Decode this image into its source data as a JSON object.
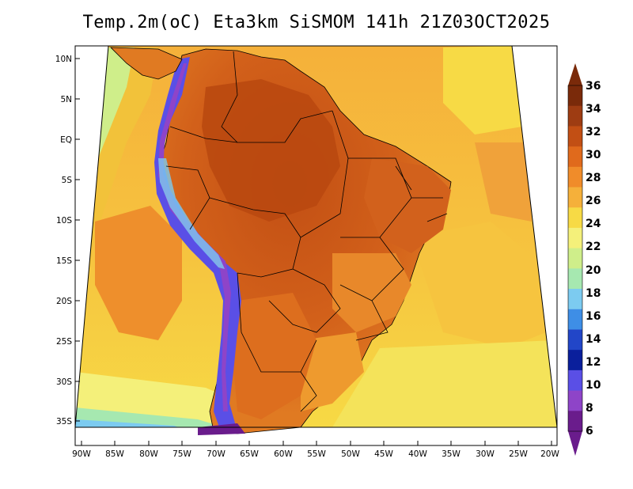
{
  "title": "Temp.2m(oC) Eta3km SiSMOM 141h 21Z03OCT2025",
  "map": {
    "lat_ticks": [
      "10N",
      "5N",
      "EQ",
      "5S",
      "10S",
      "15S",
      "20S",
      "25S",
      "30S",
      "35S"
    ],
    "lon_ticks": [
      "90W",
      "85W",
      "80W",
      "75W",
      "70W",
      "65W",
      "60W",
      "55W",
      "50W",
      "45W",
      "40W",
      "35W",
      "30W",
      "25W",
      "20W"
    ],
    "lon_range": [
      -91,
      -20
    ],
    "lat_range": [
      -38,
      11
    ],
    "variable": "2m temperature",
    "units": "oC"
  },
  "colorbar": {
    "labels": [
      "36",
      "34",
      "32",
      "30",
      "28",
      "26",
      "24",
      "22",
      "20",
      "18",
      "16",
      "14",
      "12",
      "10",
      "8",
      "6"
    ],
    "colors": [
      "#7a2a0a",
      "#9e3c12",
      "#c24f14",
      "#e06a1c",
      "#f08c2a",
      "#f5b03a",
      "#f7da45",
      "#f4f07a",
      "#cfee8a",
      "#a6e8b0",
      "#7ccbf0",
      "#3e8ee6",
      "#2246c8",
      "#0a1f9c",
      "#5a4fe6",
      "#8e44c8",
      "#6a1c8c"
    ]
  }
}
